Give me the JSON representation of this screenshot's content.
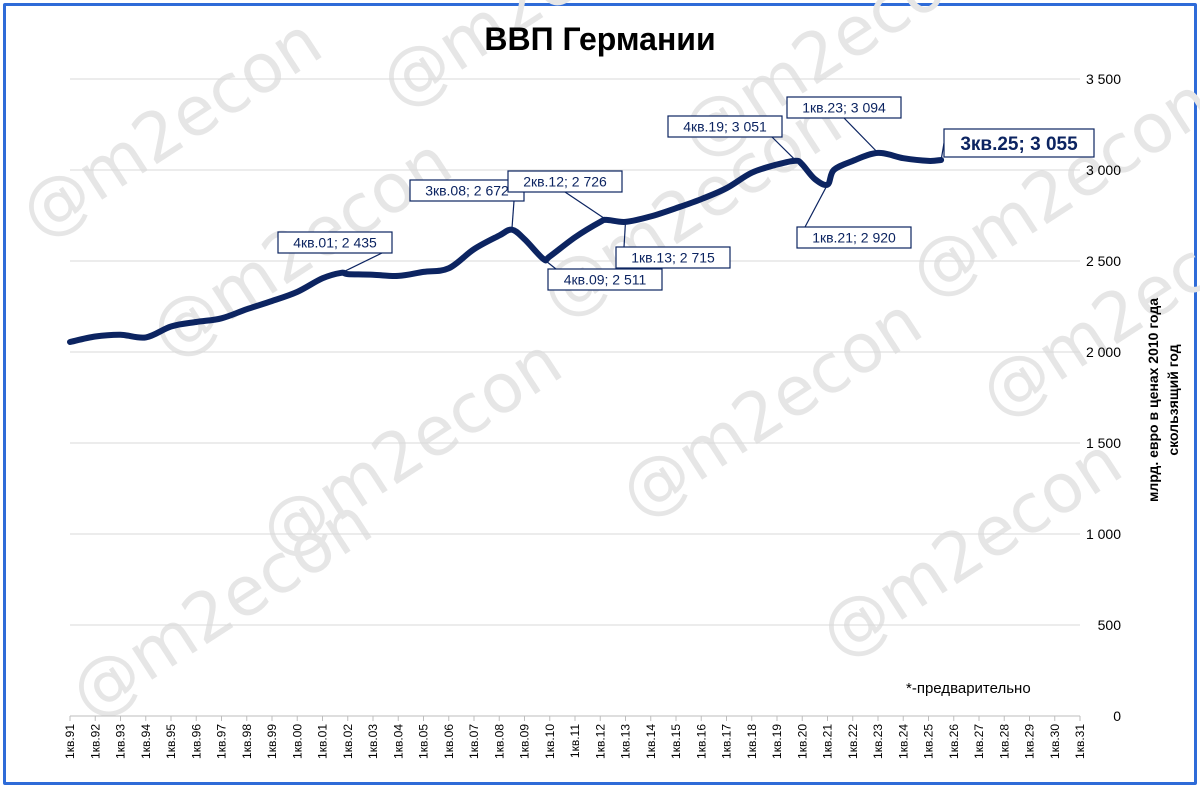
{
  "watermark": "@m2econ",
  "chart_data": {
    "type": "line",
    "title": "ВВП Германии",
    "ylabel": [
      "млрд. евро в ценах 2010 года",
      "скользящий год"
    ],
    "xlabel": "",
    "ylim": [
      0,
      3500
    ],
    "yticks": [
      0,
      500,
      1000,
      1500,
      2000,
      2500,
      3000,
      3500
    ],
    "ytick_labels": [
      "0",
      "500",
      "1 000",
      "1 500",
      "2 000",
      "2 500",
      "3 000",
      "3 500"
    ],
    "grid": true,
    "axis_side": "right",
    "x_start_year": 1991,
    "x_end_year": 2031,
    "xtick_labels": [
      "1кв.91",
      "1кв.92",
      "1кв.93",
      "1кв.94",
      "1кв.95",
      "1кв.96",
      "1кв.97",
      "1кв.98",
      "1кв.99",
      "1кв.00",
      "1кв.01",
      "1кв.02",
      "1кв.03",
      "1кв.04",
      "1кв.05",
      "1кв.06",
      "1кв.07",
      "1кв.08",
      "1кв.09",
      "1кв.10",
      "1кв.11",
      "1кв.12",
      "1кв.13",
      "1кв.14",
      "1кв.15",
      "1кв.16",
      "1кв.17",
      "1кв.18",
      "1кв.19",
      "1кв.20",
      "1кв.21",
      "1кв.22",
      "1кв.23",
      "1кв.24",
      "1кв.25",
      "1кв.26",
      "1кв.27",
      "1кв.28",
      "1кв.29",
      "1кв.30",
      "1кв.31"
    ],
    "series": [
      {
        "color": "#0c2461",
        "points": [
          [
            "1кв.91",
            2055
          ],
          [
            "1кв.92",
            2085
          ],
          [
            "1кв.93",
            2095
          ],
          [
            "1кв.94",
            2080
          ],
          [
            "1кв.95",
            2140
          ],
          [
            "1кв.96",
            2165
          ],
          [
            "1кв.97",
            2185
          ],
          [
            "1кв.98",
            2235
          ],
          [
            "1кв.99",
            2280
          ],
          [
            "1кв.00",
            2330
          ],
          [
            "1кв.01",
            2405
          ],
          [
            "4кв.01",
            2435
          ],
          [
            "1кв.02",
            2428
          ],
          [
            "1кв.03",
            2425
          ],
          [
            "1кв.04",
            2418
          ],
          [
            "1кв.05",
            2440
          ],
          [
            "1кв.06",
            2460
          ],
          [
            "1кв.07",
            2565
          ],
          [
            "1кв.08",
            2640
          ],
          [
            "3кв.08",
            2672
          ],
          [
            "1кв.09",
            2620
          ],
          [
            "4кв.09",
            2511
          ],
          [
            "1кв.10",
            2525
          ],
          [
            "1кв.11",
            2630
          ],
          [
            "1кв.12",
            2715
          ],
          [
            "2кв.12",
            2726
          ],
          [
            "1кв.13",
            2715
          ],
          [
            "1кв.14",
            2745
          ],
          [
            "1кв.15",
            2790
          ],
          [
            "1кв.16",
            2840
          ],
          [
            "1кв.17",
            2900
          ],
          [
            "1кв.18",
            2985
          ],
          [
            "1кв.19",
            3030
          ],
          [
            "4кв.19",
            3051
          ],
          [
            "1кв.20",
            3030
          ],
          [
            "3кв.20",
            2950
          ],
          [
            "1кв.21",
            2920
          ],
          [
            "2кв.21",
            3000
          ],
          [
            "1кв.22",
            3050
          ],
          [
            "1кв.23",
            3094
          ],
          [
            "1кв.24",
            3065
          ],
          [
            "1кв.25",
            3050
          ],
          [
            "3кв.25",
            3055
          ]
        ]
      }
    ],
    "annotations": [
      {
        "label": "4кв.01; 2 435",
        "point": "4кв.01",
        "value": 2435,
        "box_side": "above-left"
      },
      {
        "label": "3кв.08; 2 672",
        "point": "3кв.08",
        "value": 2672,
        "box_side": "above-left"
      },
      {
        "label": "2кв.12; 2 726",
        "point": "2кв.12",
        "value": 2726,
        "box_side": "above"
      },
      {
        "label": "4кв.09; 2 511",
        "point": "4кв.09",
        "value": 2511,
        "box_side": "below-right"
      },
      {
        "label": "1кв.13; 2 715",
        "point": "1кв.13",
        "value": 2715,
        "box_side": "below-right"
      },
      {
        "label": "4кв.19; 3 051",
        "point": "4кв.19",
        "value": 3051,
        "box_side": "above-left"
      },
      {
        "label": "1кв.23; 3 094",
        "point": "1кв.23",
        "value": 3094,
        "box_side": "above"
      },
      {
        "label": "1кв.21; 2 920",
        "point": "1кв.21",
        "value": 2920,
        "box_side": "below-right"
      },
      {
        "label": "3кв.25; 3 055",
        "point": "3кв.25",
        "value": 3055,
        "box_side": "right",
        "emphasis": true
      }
    ],
    "footnote": "*-предварительно"
  }
}
